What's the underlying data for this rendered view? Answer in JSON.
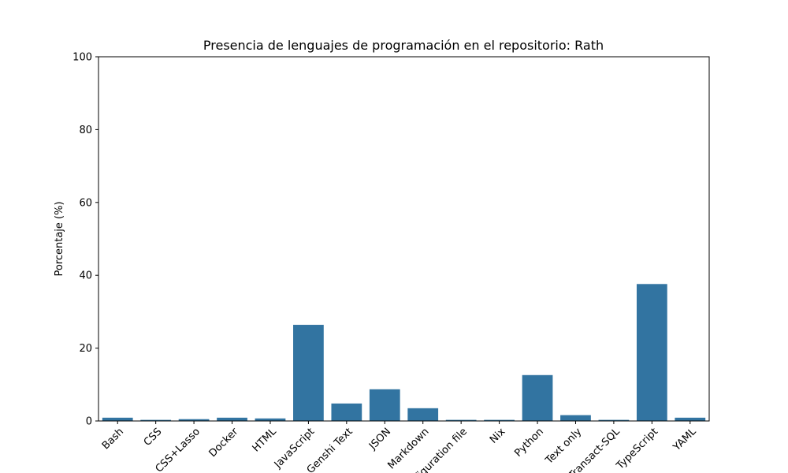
{
  "chart_data": {
    "type": "bar",
    "title": "Presencia de lenguajes de programación en el repositorio: Rath",
    "xlabel": "",
    "ylabel": "Porcentaje (%)",
    "ylim": [
      0,
      100
    ],
    "yticks": [
      0,
      20,
      40,
      60,
      80,
      100
    ],
    "grid": false,
    "bar_color": "#3274a1",
    "categories": [
      "Bash",
      "CSS",
      "CSS+Lasso",
      "Docker",
      "HTML",
      "JavaScript",
      "Genshi Text",
      "JSON",
      "Markdown",
      "configuration file",
      "Nix",
      "Python",
      "Text only",
      "Transact-SQL",
      "TypeScript",
      "YAML"
    ],
    "values": [
      0.9,
      0.3,
      0.5,
      0.9,
      0.7,
      26.4,
      4.8,
      8.7,
      3.5,
      0.3,
      0.3,
      12.6,
      1.6,
      0.3,
      37.6,
      0.9
    ]
  }
}
